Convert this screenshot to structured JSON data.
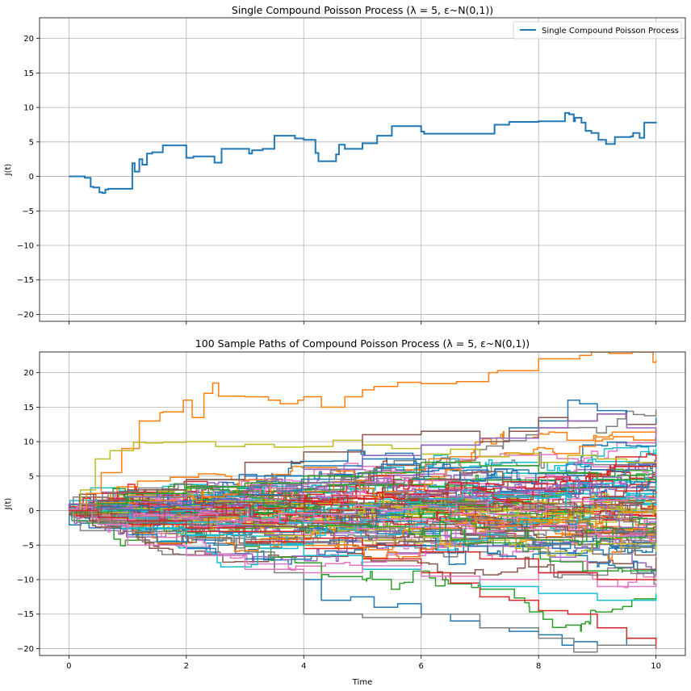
{
  "palette": [
    "#1f77b4",
    "#ff7f0e",
    "#2ca02c",
    "#d62728",
    "#9467bd",
    "#8c564b",
    "#e377c2",
    "#7f7f7f",
    "#bcbd22",
    "#17becf"
  ],
  "chart_data": [
    {
      "type": "line",
      "title": "Single Compound Poisson Process (λ = 5, ε~N(0,1))",
      "xlabel": "",
      "ylabel": "J(t)",
      "xlim": [
        -0.5,
        10.5
      ],
      "ylim": [
        -21,
        23
      ],
      "xticks": [
        0,
        2,
        4,
        6,
        8,
        10
      ],
      "xtick_labels": [
        "",
        "",
        "",
        "",
        "",
        ""
      ],
      "yticks": [
        -20,
        -15,
        -10,
        -5,
        0,
        5,
        10,
        15,
        20
      ],
      "ytick_labels": [
        "−20",
        "−15",
        "−10",
        "−5",
        "0",
        "5",
        "10",
        "15",
        "20"
      ],
      "grid": true,
      "legend": {
        "position": "top-right",
        "entries": [
          "Single Compound Poisson Process"
        ]
      },
      "series": [
        {
          "name": "Single Compound Poisson Process",
          "color": "#1f77b4",
          "step": true,
          "x": [
            0,
            0.27,
            0.37,
            0.42,
            0.52,
            0.57,
            0.62,
            0.67,
            1.08,
            1.12,
            1.2,
            1.25,
            1.33,
            1.42,
            1.6,
            1.9,
            2.0,
            2.12,
            2.35,
            2.48,
            2.6,
            3.07,
            3.12,
            3.3,
            3.5,
            3.85,
            4.0,
            4.2,
            4.25,
            4.55,
            4.6,
            4.7,
            5.0,
            5.1,
            5.25,
            5.4,
            5.5,
            5.65,
            6.0,
            6.05,
            6.3,
            6.5,
            7.1,
            7.25,
            7.5,
            7.8,
            8.0,
            8.45,
            8.52,
            8.6,
            8.62,
            8.73,
            8.8,
            8.9,
            9.02,
            9.07,
            9.15,
            9.3,
            9.57,
            9.61,
            9.72,
            9.8,
            10.0
          ],
          "y": [
            0,
            -0.2,
            -1.5,
            -1.6,
            -2.3,
            -2.4,
            -1.9,
            -1.8,
            1.9,
            0.7,
            2.5,
            1.7,
            3.3,
            3.5,
            4.5,
            4.5,
            2.7,
            2.9,
            2.9,
            2.0,
            4.0,
            3.3,
            3.8,
            4.0,
            5.9,
            5.5,
            5.3,
            3.4,
            2.2,
            3.2,
            4.6,
            4.0,
            4.8,
            4.8,
            5.9,
            5.9,
            7.3,
            7.3,
            6.5,
            6.2,
            6.2,
            6.2,
            6.2,
            7.5,
            7.9,
            7.9,
            8.0,
            9.2,
            9.0,
            8.0,
            8.5,
            7.8,
            6.6,
            6.3,
            5.3,
            5.3,
            4.7,
            5.7,
            5.8,
            6.3,
            5.6,
            7.8,
            7.7
          ]
        }
      ]
    },
    {
      "type": "line",
      "title": "100 Sample Paths of Compound Poisson Process (λ = 5, ε~N(0,1))",
      "xlabel": "Time",
      "ylabel": "J(t)",
      "xlim": [
        -0.5,
        10.5
      ],
      "ylim": [
        -21,
        23
      ],
      "xticks": [
        0,
        2,
        4,
        6,
        8,
        10
      ],
      "xtick_labels": [
        "0",
        "2",
        "4",
        "6",
        "8",
        "10"
      ],
      "yticks": [
        -20,
        -15,
        -10,
        -5,
        0,
        5,
        10,
        15,
        20
      ],
      "ytick_labels": [
        "−20",
        "−15",
        "−10",
        "−5",
        "0",
        "5",
        "10",
        "15",
        "20"
      ],
      "grid": true,
      "n_paths": 100,
      "paths_note_rendered": "100 sample step paths starting at 0, colors cycling through palette",
      "series": [
        {
          "color": "#ff7f0e",
          "step": true,
          "x": [
            0,
            0.3,
            0.55,
            0.9,
            1.2,
            1.55,
            1.6,
            1.95,
            2.1,
            2.3,
            2.45,
            2.55,
            3.0,
            3.4,
            3.6,
            3.9,
            4.0,
            4.3,
            4.7,
            5.0,
            5.2,
            5.6,
            6.0,
            6.6,
            7.15,
            7.3,
            8.0,
            8.7,
            8.9,
            9.2,
            9.6,
            9.95,
            10.0
          ],
          "y": [
            0,
            2.5,
            5.5,
            9.0,
            13.0,
            14.2,
            14.3,
            16.0,
            13.5,
            17.0,
            18.5,
            16.6,
            16.5,
            16.0,
            15.5,
            16.0,
            16.5,
            15.0,
            16.5,
            17.5,
            18.0,
            18.6,
            18.4,
            18.7,
            20.0,
            20.3,
            22.0,
            22.5,
            23.0,
            22.8,
            23.0,
            21.5,
            21.8
          ]
        },
        {
          "color": "#bcbd22",
          "step": true,
          "x": [
            0,
            0.2,
            0.45,
            0.7,
            1.1,
            1.3,
            1.6,
            2.0,
            2.5,
            3.0,
            3.5,
            4.0,
            4.5,
            5.0,
            5.5,
            6.0,
            6.5,
            7.0,
            7.5,
            8.0,
            8.5,
            9.0,
            9.5,
            10.0
          ],
          "y": [
            0,
            3.0,
            7.5,
            8.7,
            9.9,
            9.8,
            9.9,
            10.0,
            9.3,
            9.6,
            9.2,
            9.3,
            10.2,
            9.5,
            9.0,
            8.2,
            8.9,
            7.8,
            8.3,
            7.0,
            8.0,
            7.5,
            7.0,
            6.9
          ]
        },
        {
          "color": "#1f77b4",
          "step": true,
          "x": [
            0,
            0.5,
            1.0,
            1.5,
            2.0,
            2.5,
            3.0,
            3.5,
            4.0,
            4.3,
            4.8,
            5.2,
            5.6,
            6.0,
            6.5,
            7.0,
            7.5,
            8.0,
            8.4,
            8.6,
            9.0,
            9.5,
            10.0
          ],
          "y": [
            0,
            -2.0,
            -3.5,
            -4.5,
            -5.5,
            -6.5,
            -7.0,
            -8.5,
            -10.0,
            -13.0,
            -12.5,
            -14.0,
            -13.5,
            -15.0,
            -16.0,
            -17.0,
            -17.5,
            -18.0,
            -19.5,
            -19.0,
            -19.5,
            -18.5,
            -18.8
          ]
        },
        {
          "color": "#1f77b4",
          "step": true,
          "x": [
            0,
            0.5,
            1.0,
            1.5,
            2.0,
            3.0,
            4.0,
            5.0,
            6.0,
            7.0,
            7.5,
            8.0,
            8.5,
            8.7,
            9.0,
            9.5,
            10.0
          ],
          "y": [
            0,
            1.5,
            2.0,
            3.0,
            4.5,
            5.0,
            6.5,
            7.5,
            9.5,
            10.5,
            12.0,
            13.0,
            16.0,
            15.5,
            14.5,
            12.5,
            13.5
          ]
        },
        {
          "color": "#d62728",
          "step": true,
          "x": [
            0,
            0.5,
            1.0,
            2.0,
            3.0,
            4.0,
            5.0,
            6.0,
            6.5,
            7.0,
            7.5,
            8.0,
            8.5,
            9.0,
            9.5,
            10.0
          ],
          "y": [
            0,
            -1.0,
            -2.0,
            -3.0,
            -4.5,
            -5.5,
            -7.0,
            -9.0,
            -10.5,
            -12.5,
            -13.0,
            -14.5,
            -15.0,
            -17.0,
            -18.5,
            -20.0
          ]
        },
        {
          "color": "#7f7f7f",
          "step": true,
          "x": [
            0,
            0.5,
            1.0,
            2.0,
            3.0,
            3.5,
            4.0,
            5.0,
            6.0,
            7.0,
            8.0,
            8.6,
            9.0,
            10.0
          ],
          "y": [
            0,
            -1.5,
            -3.0,
            -4.0,
            -6.0,
            -9.0,
            -15.0,
            -15.5,
            -15.0,
            -17.0,
            -18.5,
            -20.5,
            -19.5,
            -19.8
          ]
        },
        {
          "color": "#8c564b",
          "step": true,
          "x": [
            0,
            0.5,
            1.0,
            2.0,
            3.0,
            4.0,
            5.0,
            6.0,
            7.0,
            7.5,
            8.0,
            8.5,
            9.0,
            9.5,
            10.0
          ],
          "y": [
            0,
            1.5,
            3.0,
            4.5,
            7.0,
            8.5,
            11.0,
            11.5,
            10.0,
            11.5,
            13.5,
            13.0,
            14.0,
            12.5,
            12.8
          ]
        },
        {
          "color": "#9467bd",
          "step": true,
          "x": [
            0,
            0.5,
            1.0,
            2.0,
            3.0,
            4.0,
            5.0,
            6.0,
            7.0,
            8.0,
            8.5,
            9.0,
            9.5,
            10.0
          ],
          "y": [
            0,
            1.0,
            2.0,
            3.5,
            4.0,
            6.0,
            8.0,
            9.5,
            10.5,
            12.0,
            13.0,
            14.0,
            12.0,
            10.0
          ]
        },
        {
          "color": "#17becf",
          "step": true,
          "x": [
            0,
            0.5,
            1.0,
            2.0,
            3.0,
            4.0,
            5.0,
            6.0,
            7.0,
            8.0,
            9.0,
            10.0
          ],
          "y": [
            0,
            -1.0,
            -2.5,
            -3.5,
            -5.0,
            -6.5,
            -8.5,
            -9.5,
            -11.0,
            -12.0,
            -13.0,
            -12.0
          ]
        },
        {
          "color": "#e377c2",
          "step": true,
          "x": [
            0,
            0.5,
            1.0,
            2.0,
            3.0,
            4.0,
            5.0,
            6.0,
            7.0,
            8.0,
            9.0,
            10.0
          ],
          "y": [
            0,
            -2.0,
            -5.0,
            -6.5,
            -8.5,
            -9.0,
            -8.0,
            -9.5,
            -10.0,
            -9.0,
            -11.0,
            -10.5
          ]
        },
        {
          "color": "#2ca02c",
          "step": true,
          "x": [
            0,
            0.5,
            1.0,
            2.0,
            3.0,
            4.0,
            5.0,
            6.0,
            7.0,
            8.0,
            9.0,
            10.0
          ],
          "y": [
            0,
            1.0,
            2.5,
            3.5,
            4.0,
            5.0,
            5.5,
            7.0,
            6.5,
            5.5,
            4.5,
            4.8
          ]
        },
        {
          "color": "#d62728",
          "step": true,
          "x": [
            0,
            0.5,
            1.0,
            2.0,
            3.0,
            4.0,
            5.0,
            6.0,
            7.0,
            8.0,
            9.0,
            10.0
          ],
          "y": [
            0,
            -1.0,
            -1.5,
            -2.5,
            -3.0,
            -4.0,
            -5.0,
            -6.0,
            -7.0,
            -9.0,
            -10.0,
            -10.2
          ]
        }
      ]
    }
  ]
}
